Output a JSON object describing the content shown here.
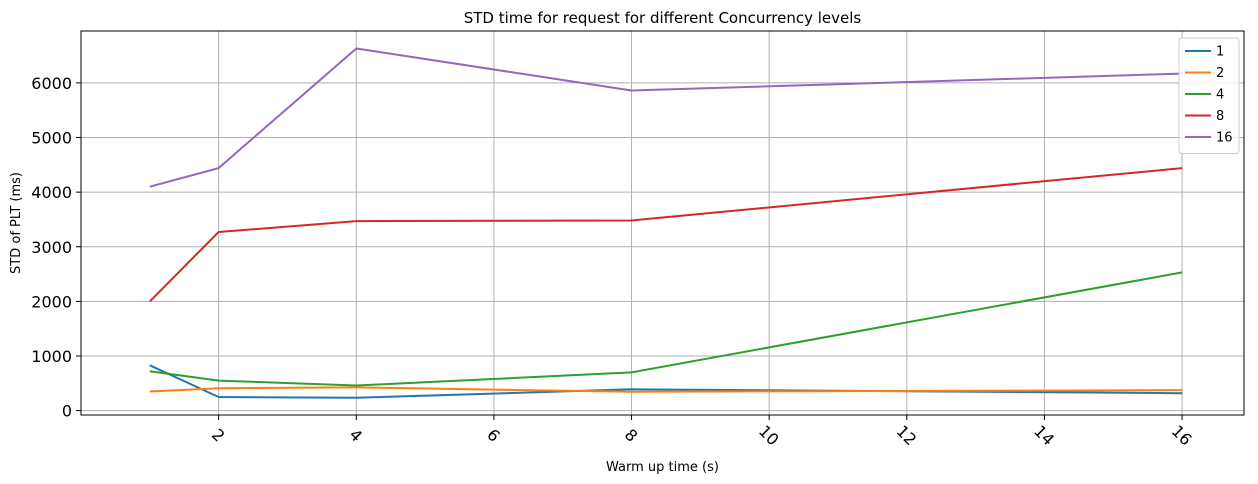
{
  "chart_data": {
    "type": "line",
    "title": "STD time for request for different Concurrency levels",
    "xlabel": "Warm up time (s)",
    "ylabel": "STD of PLT (ms)",
    "xlim": [
      0,
      16.9
    ],
    "ylim": [
      -80,
      6950
    ],
    "xticks": [
      2,
      4,
      6,
      8,
      10,
      12,
      14,
      16
    ],
    "yticks": [
      0,
      1000,
      2000,
      3000,
      4000,
      5000,
      6000
    ],
    "grid": true,
    "legend_position": "top-right",
    "x": [
      1,
      2,
      4,
      8,
      16
    ],
    "series": [
      {
        "name": "1",
        "color": "#1f77b4",
        "values": [
          830,
          250,
          235,
          390,
          320
        ]
      },
      {
        "name": "2",
        "color": "#ff7f0e",
        "values": [
          350,
          410,
          425,
          345,
          375
        ]
      },
      {
        "name": "4",
        "color": "#2ca02c",
        "values": [
          720,
          550,
          460,
          700,
          2530
        ]
      },
      {
        "name": "8",
        "color": "#d62728",
        "values": [
          2000,
          3270,
          3470,
          3480,
          4440
        ]
      },
      {
        "name": "16",
        "color": "#9467bd",
        "values": [
          4100,
          4440,
          6630,
          5860,
          6170
        ]
      }
    ]
  }
}
